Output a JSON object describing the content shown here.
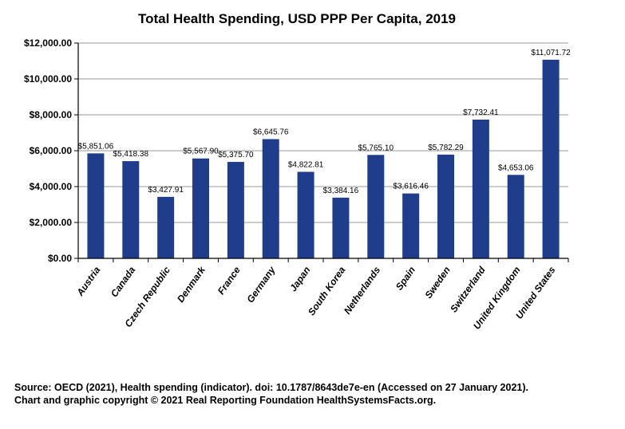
{
  "chart_data": {
    "type": "bar",
    "title": "Total Health Spending, USD PPP Per Capita, 2019",
    "categories": [
      "Austria",
      "Canada",
      "Czech Republic",
      "Denmark",
      "France",
      "Germany",
      "Japan",
      "South Korea",
      "Netherlands",
      "Spain",
      "Sweden",
      "Switzerland",
      "United Kingdom",
      "United States"
    ],
    "values": [
      5851.06,
      5418.38,
      3427.91,
      5567.9,
      5375.7,
      6645.76,
      4822.81,
      3384.16,
      5765.1,
      3616.46,
      5782.29,
      7732.41,
      4653.06,
      11071.72
    ],
    "data_labels": [
      "$5,851.06",
      "$5,418.38",
      "$3,427.91",
      "$5,567.90",
      "$5,375.70",
      "$6,645.76",
      "$4,822.81",
      "$3,384.16",
      "$5,765.10",
      "$3,616.46",
      "$5,782.29",
      "$7,732.41",
      "$4,653.06",
      "$11,071.72"
    ],
    "y_ticks": [
      0,
      2000,
      4000,
      6000,
      8000,
      10000,
      12000
    ],
    "y_tick_labels": [
      "$0.00",
      "$2,000.00",
      "$4,000.00",
      "$6,000.00",
      "$8,000.00",
      "$10,000.00",
      "$12,000.00"
    ],
    "ylim": [
      0,
      12000
    ],
    "xlabel": "",
    "ylabel": "",
    "grid": true,
    "bar_color": "#1f3d8a"
  },
  "footer": {
    "source_line": "Source: OECD (2021), Health spending (indicator). doi: 10.1787/8643de7e-en (Accessed on 27 January 2021).",
    "copyright_line": "Chart and graphic copyright © 2021 Real Reporting Foundation HealthSystemsFacts.org."
  }
}
